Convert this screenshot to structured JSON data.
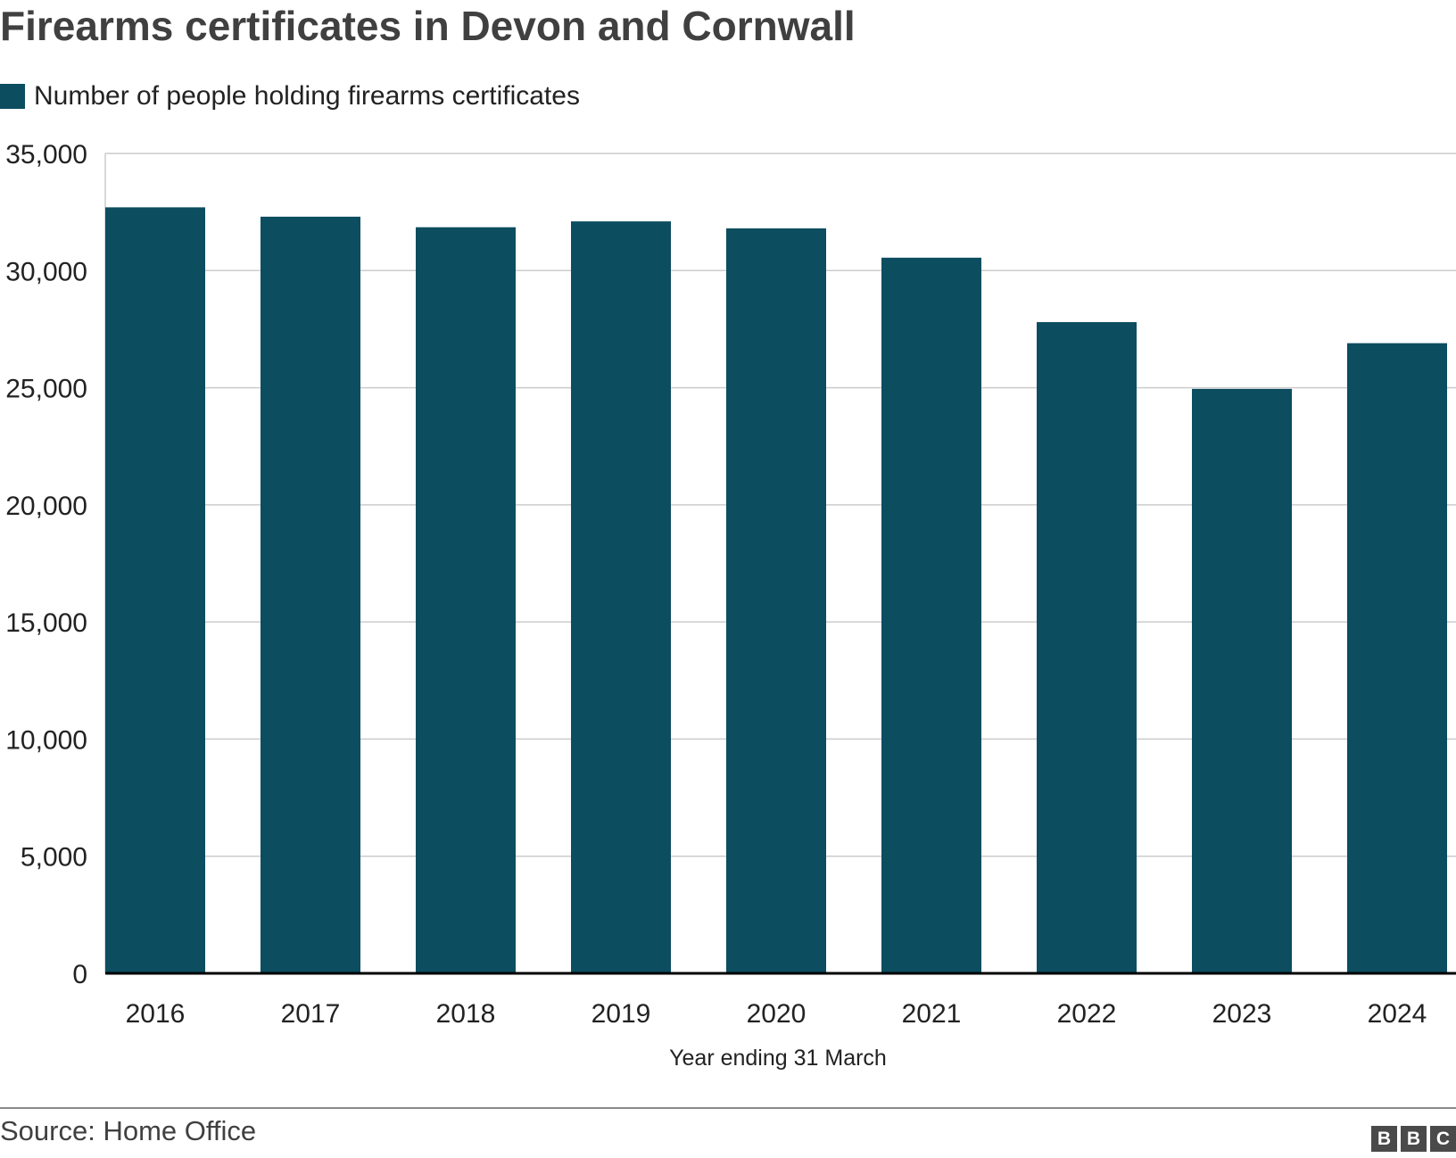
{
  "chart_data": {
    "type": "bar",
    "title": "Firearms certificates in Devon and Cornwall",
    "legend": [
      {
        "name": "Number of people holding firearms certificates",
        "color": "#0c4d60"
      }
    ],
    "legend_placement": "top-left",
    "categories": [
      "2016",
      "2017",
      "2018",
      "2019",
      "2020",
      "2021",
      "2022",
      "2023",
      "2024"
    ],
    "series": [
      {
        "name": "Number of people holding firearms certificates",
        "values": [
          32700,
          32300,
          31850,
          32100,
          31800,
          30550,
          27800,
          24950,
          26900
        ]
      }
    ],
    "xlabel": "Year ending 31 March",
    "ylabel": "",
    "ylim": [
      0,
      35000
    ],
    "yticks": [
      0,
      5000,
      10000,
      15000,
      20000,
      25000,
      30000,
      35000
    ],
    "ytick_labels": [
      "0",
      "5,000",
      "10,000",
      "15,000",
      "20,000",
      "25,000",
      "30,000",
      "35,000"
    ],
    "grid": true,
    "bar_color": "#0c4d60"
  },
  "footer": {
    "source": "Source: Home Office",
    "logo": [
      "B",
      "B",
      "C"
    ]
  }
}
